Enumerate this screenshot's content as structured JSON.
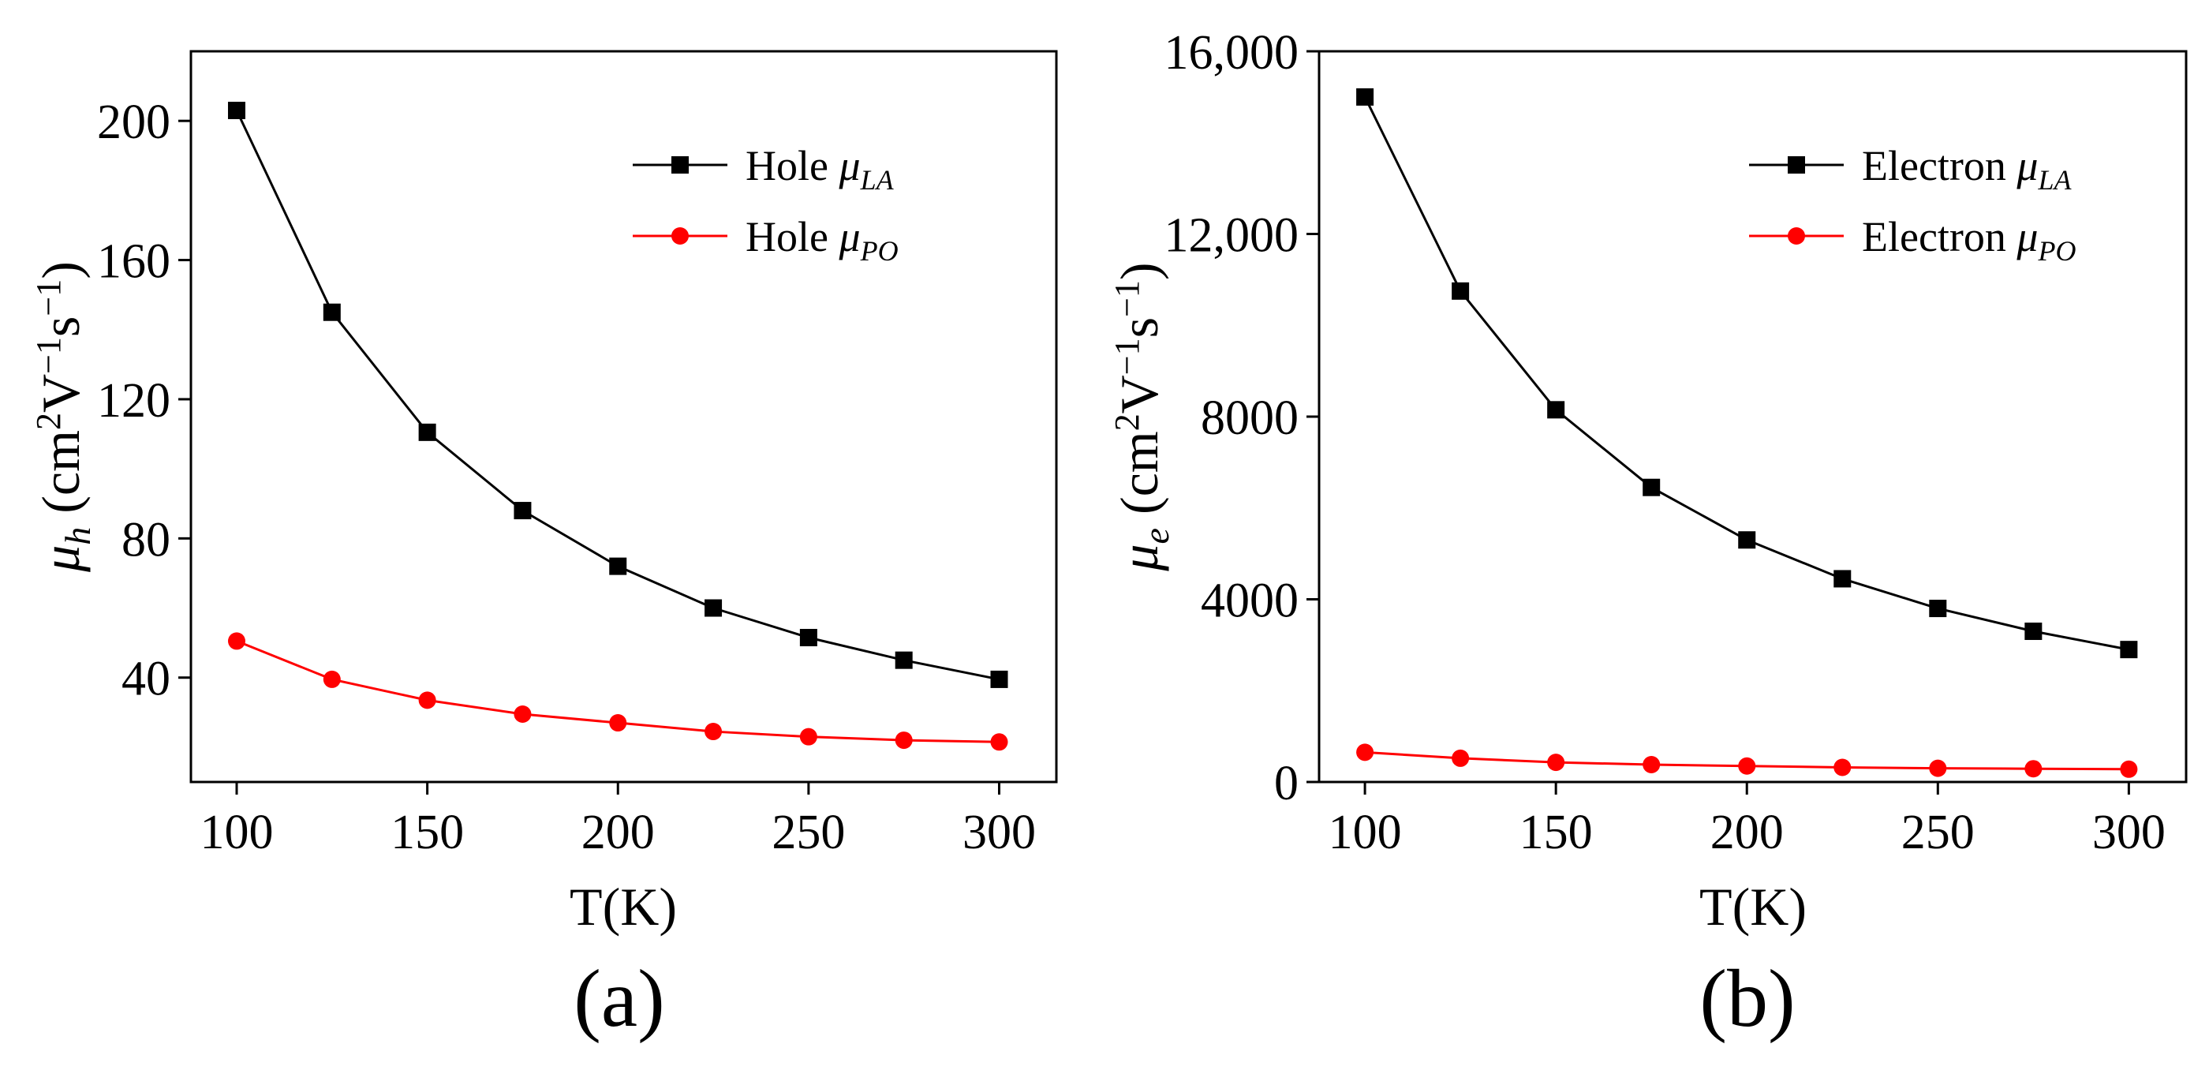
{
  "chart_data": [
    {
      "type": "line",
      "panel_label": "(a)",
      "xlabel": "T(K)",
      "ylabel": {
        "symbol": "μ",
        "sub": "h",
        "unit_open": " (cm",
        "unit_sup1": "2",
        "unit_mid1": "V",
        "unit_sup2": "−1",
        "unit_mid2": "s",
        "unit_sup3": "−1",
        "unit_close": ")"
      },
      "xlim": [
        88,
        315
      ],
      "ylim": [
        10,
        220
      ],
      "xticks": [
        100,
        150,
        200,
        250,
        300
      ],
      "yticks": [
        40,
        80,
        120,
        160,
        200
      ],
      "xtick_labels": [
        "100",
        "150",
        "200",
        "250",
        "300"
      ],
      "ytick_labels": [
        "40",
        "80",
        "120",
        "160",
        "200"
      ],
      "legend_position": "top-right",
      "x": [
        100,
        125,
        150,
        175,
        200,
        225,
        250,
        275,
        300
      ],
      "series": [
        {
          "name": "Hole",
          "sub": "LA",
          "color": "#000000",
          "marker": "square",
          "values": [
            203,
            145,
            110.5,
            88,
            72,
            60,
            51.5,
            45,
            39.5
          ]
        },
        {
          "name": "Hole",
          "sub": "PO",
          "color": "#ff0000",
          "marker": "circle",
          "values": [
            50.5,
            39.5,
            33.5,
            29.5,
            27,
            24.5,
            23,
            22,
            21.5
          ]
        }
      ]
    },
    {
      "type": "line",
      "panel_label": "(b)",
      "xlabel": "T(K)",
      "ylabel": {
        "symbol": "μ",
        "sub": "e",
        "unit_open": " (cm",
        "unit_sup1": "2",
        "unit_mid1": "V",
        "unit_sup2": "−1",
        "unit_mid2": "s",
        "unit_sup3": "−1",
        "unit_close": ")"
      },
      "xlim": [
        88,
        315
      ],
      "ylim": [
        0,
        16000
      ],
      "xticks": [
        100,
        150,
        200,
        250,
        300
      ],
      "yticks": [
        0,
        4000,
        8000,
        12000,
        16000
      ],
      "xtick_labels": [
        "100",
        "150",
        "200",
        "250",
        "300"
      ],
      "ytick_labels": [
        "0",
        "4000",
        "8000",
        "12,000",
        "16,000"
      ],
      "legend_position": "top-right",
      "x": [
        100,
        125,
        150,
        175,
        200,
        225,
        250,
        275,
        300
      ],
      "series": [
        {
          "name": "Electron",
          "sub": "LA",
          "color": "#000000",
          "marker": "square",
          "values": [
            15000,
            10750,
            8150,
            6450,
            5300,
            4450,
            3800,
            3300,
            2900
          ]
        },
        {
          "name": "Electron",
          "sub": "PO",
          "color": "#ff0000",
          "marker": "circle",
          "values": [
            650,
            520,
            430,
            380,
            350,
            320,
            300,
            290,
            280
          ]
        }
      ]
    }
  ]
}
